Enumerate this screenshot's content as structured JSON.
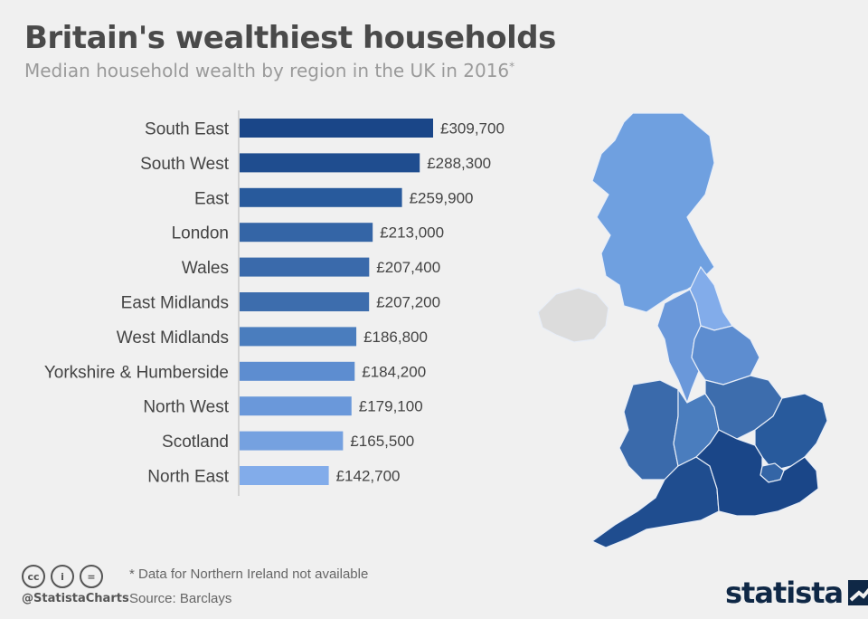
{
  "header": {
    "title": "Britain's wealthiest households",
    "subtitle": "Median household wealth by region in the UK in 2016",
    "subtitle_mark": "*"
  },
  "chart_data": {
    "type": "bar",
    "orientation": "horizontal",
    "categories": [
      "South East",
      "South West",
      "East",
      "London",
      "Wales",
      "East Midlands",
      "West Midlands",
      "Yorkshire & Humberside",
      "North West",
      "Scotland",
      "North East"
    ],
    "values": [
      309700,
      288300,
      259900,
      213000,
      207400,
      207200,
      186800,
      184200,
      179100,
      165500,
      142700
    ],
    "labels": [
      "£309,700",
      "£288,300",
      "£259,900",
      "£213,000",
      "£207,400",
      "£207,200",
      "£186,800",
      "£184,200",
      "£179,100",
      "£165,500",
      "£142,700"
    ],
    "colors": [
      "#1a4688",
      "#1f4d8f",
      "#285a9c",
      "#3465a6",
      "#3a6aab",
      "#3d6dad",
      "#4a7dbe",
      "#5d8dd0",
      "#6a98da",
      "#75a1e0",
      "#82acea"
    ],
    "title": "Britain's wealthiest households",
    "xlabel": "",
    "ylabel": "",
    "xlim": [
      0,
      309700
    ],
    "grid": false,
    "legend": "none"
  },
  "map": {
    "regions": [
      {
        "name": "Scotland",
        "color": "#6fa0e0"
      },
      {
        "name": "North East",
        "color": "#82acea"
      },
      {
        "name": "North West",
        "color": "#6a98da"
      },
      {
        "name": "Yorkshire & Humberside",
        "color": "#5d8dd0"
      },
      {
        "name": "Wales",
        "color": "#3a6aab"
      },
      {
        "name": "West Midlands",
        "color": "#4a7dbe"
      },
      {
        "name": "East Midlands",
        "color": "#3d6dad"
      },
      {
        "name": "East",
        "color": "#285a9c"
      },
      {
        "name": "London",
        "color": "#3465a6"
      },
      {
        "name": "South West",
        "color": "#1f4d8f"
      },
      {
        "name": "South East",
        "color": "#1a4688"
      },
      {
        "name": "Northern Ireland",
        "color": "#dcdcdc"
      }
    ]
  },
  "footer": {
    "note": "* Data for Northern Ireland not available",
    "source": "Source: Barclays",
    "handle": "@StatistaCharts",
    "brand": "statista",
    "license_icons": [
      "cc-icon",
      "attribution-icon",
      "noderivs-icon"
    ],
    "license_glyphs": [
      "cc",
      "i",
      "="
    ]
  }
}
